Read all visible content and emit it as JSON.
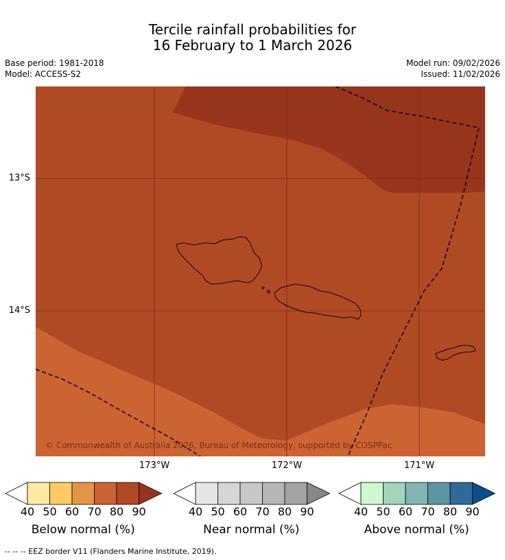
{
  "title": {
    "line1": "Tercile rainfall probabilities for",
    "line2": "16 February to 1 March 2026"
  },
  "meta": {
    "base_period": "Base period: 1981-2018",
    "model": "Model: ACCESS-S2",
    "model_run": "Model run: 09/02/2026",
    "issued": "Issued: 11/02/2026"
  },
  "map": {
    "lat_labels": [
      "13°S",
      "14°S"
    ],
    "lon_labels": [
      "173°W",
      "172°W",
      "171°W"
    ],
    "copyright": "© Commonwealth of Australia 2026, Bureau of Meteorology, supported by COSPPac",
    "colors": {
      "below_80": "#b04a25",
      "below_90": "#98351f",
      "below_70": "#cb6332",
      "grid": "#7a2a10",
      "coast": "#000000",
      "eez": "#000000"
    }
  },
  "colorbars": [
    {
      "label": "Below normal (%)",
      "ticks": [
        "40",
        "50",
        "60",
        "70",
        "80",
        "90"
      ],
      "colors": [
        "#ffffff",
        "#feeba2",
        "#fdcb66",
        "#e39547",
        "#ca6232",
        "#b04a25",
        "#98351f"
      ]
    },
    {
      "label": "Near normal (%)",
      "ticks": [
        "40",
        "50",
        "60",
        "70",
        "80",
        "90"
      ],
      "colors": [
        "#ffffff",
        "#e6e6e6",
        "#d6d6d6",
        "#c8c8c8",
        "#b6b6b6",
        "#a3a3a3",
        "#888888"
      ]
    },
    {
      "label": "Above normal (%)",
      "ticks": [
        "40",
        "50",
        "60",
        "70",
        "80",
        "90"
      ],
      "colors": [
        "#ffffff",
        "#ccf9cd",
        "#a3d4bc",
        "#80b5b2",
        "#5d94a3",
        "#30689a",
        "#0c4d8c"
      ]
    }
  ],
  "footer": "--  --  -- EEZ border V11 (Flanders Marine Institute, 2019)."
}
